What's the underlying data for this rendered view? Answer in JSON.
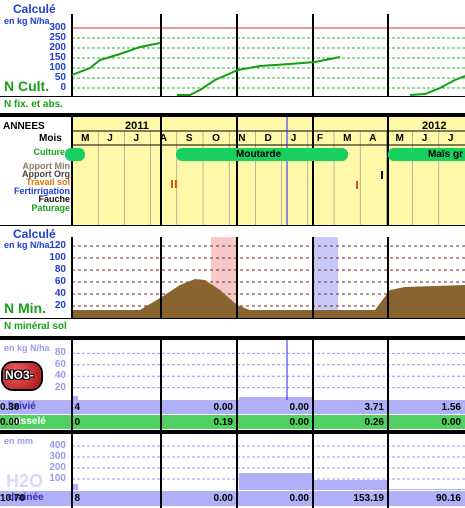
{
  "ncult": {
    "title": "Calculé",
    "unit": "en kg N/ha",
    "yticks": [
      "300",
      "250",
      "200",
      "150",
      "100",
      "50",
      "0"
    ],
    "label": "N Cult.",
    "sublabel": "N fix. et abs."
  },
  "calendar": {
    "annees_label": "ANNEES",
    "mois_label": "Mois",
    "year_2011": "2011",
    "year_2012": "2012",
    "months": [
      "M",
      "J",
      "J",
      "A",
      "S",
      "O",
      "N",
      "D",
      "J",
      "F",
      "M",
      "A",
      "M",
      "J",
      "J"
    ],
    "rows": [
      "Cultures",
      "Apport Min",
      "Apport Org",
      "Travail sol",
      "Fertirrigation",
      "Fauche",
      "Paturage"
    ],
    "crops": [
      {
        "label": ""
      },
      {
        "label": "Moutarde"
      },
      {
        "label": "Maïs gr"
      }
    ]
  },
  "nmin": {
    "title": "Calculé",
    "unit": "en kg N/ha",
    "yticks": [
      "120",
      "100",
      "80",
      "60",
      "40",
      "20"
    ],
    "label": "N Min.",
    "sublabel": "N minéral sol"
  },
  "no3": {
    "unit": "en kg N/ha",
    "yticks": [
      "80",
      "60",
      "40",
      "20"
    ],
    "badge": "NO3-",
    "lixivie_label": "lixivié",
    "lixivie": [
      "4",
      "0.00",
      "0.00",
      "3.71",
      "1.56",
      "0.30"
    ],
    "ruissele_label": "ruisselé",
    "ruissele": [
      "0",
      "0.19",
      "0.00",
      "0.26",
      "0.00",
      "0.00"
    ]
  },
  "h2o": {
    "unit": "en mm",
    "yticks": [
      "400",
      "300",
      "200",
      "100"
    ],
    "badge": "H2O",
    "drainee_label": "drainée",
    "drainee": [
      "8",
      "0.00",
      "0.00",
      "153.19",
      "90.16",
      "10.70"
    ]
  },
  "colors": {
    "yellow": "#fff8a8",
    "crop": "#18d060",
    "bar": "#b0b0f8",
    "curve": "#10a010",
    "soil": "#8a6430"
  }
}
